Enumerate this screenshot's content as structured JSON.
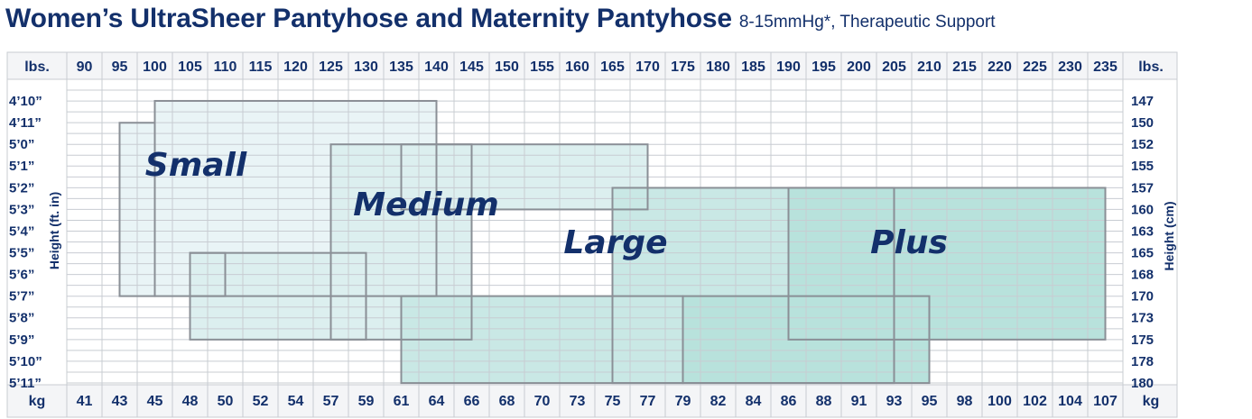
{
  "title": {
    "main": "Women’s UltraSheer Pantyhose and Maternity Pantyhose",
    "sub": "8-15mmHg*, Therapeutic Support"
  },
  "chart_data": {
    "type": "table",
    "lbs_label": "lbs.",
    "kg_label": "kg",
    "lbs": [
      "90",
      "95",
      "100",
      "105",
      "110",
      "115",
      "120",
      "125",
      "130",
      "135",
      "140",
      "145",
      "150",
      "155",
      "160",
      "165",
      "170",
      "175",
      "180",
      "185",
      "190",
      "195",
      "200",
      "205",
      "210",
      "215",
      "220",
      "225",
      "230",
      "235"
    ],
    "kg": [
      "41",
      "43",
      "45",
      "48",
      "50",
      "52",
      "54",
      "57",
      "59",
      "61",
      "64",
      "66",
      "68",
      "70",
      "73",
      "75",
      "77",
      "79",
      "82",
      "84",
      "86",
      "88",
      "91",
      "93",
      "95",
      "98",
      "100",
      "102",
      "104",
      "107"
    ],
    "height_ft": [
      "4’10”",
      "4’11”",
      "5’0”",
      "5’1”",
      "5’2”",
      "5’3”",
      "5’4”",
      "5’5”",
      "5’6”",
      "5’7”",
      "5’8”",
      "5’9”",
      "5’10”",
      "5’11”"
    ],
    "height_cm": [
      "147",
      "150",
      "152",
      "155",
      "157",
      "160",
      "163",
      "165",
      "168",
      "170",
      "173",
      "175",
      "178",
      "180"
    ],
    "left_axis_label": "Height (ft. in)",
    "right_axis_label": "Height (cm)",
    "sizes": [
      {
        "name": "Small",
        "color": "#e9f4f6",
        "ranges": [
          [
            95,
            100,
            4.917,
            5.583
          ],
          [
            100,
            140,
            4.833,
            5.583
          ],
          [
            105,
            110,
            5.417,
            5.583
          ]
        ]
      },
      {
        "name": "Medium",
        "color": "#dcefef",
        "ranges": [
          [
            105,
            130,
            5.417,
            5.75
          ],
          [
            125,
            145,
            5.0,
            5.75
          ],
          [
            135,
            170,
            5.0,
            5.25
          ]
        ]
      },
      {
        "name": "Large",
        "color": "#c9e8e5",
        "ranges": [
          [
            135,
            175,
            5.583,
            5.917
          ],
          [
            165,
            205,
            5.167,
            5.917
          ]
        ]
      },
      {
        "name": "Plus",
        "color": "#b8e2dc",
        "ranges": [
          [
            175,
            210,
            5.583,
            5.917
          ],
          [
            190,
            235,
            5.167,
            5.75
          ]
        ]
      }
    ]
  }
}
